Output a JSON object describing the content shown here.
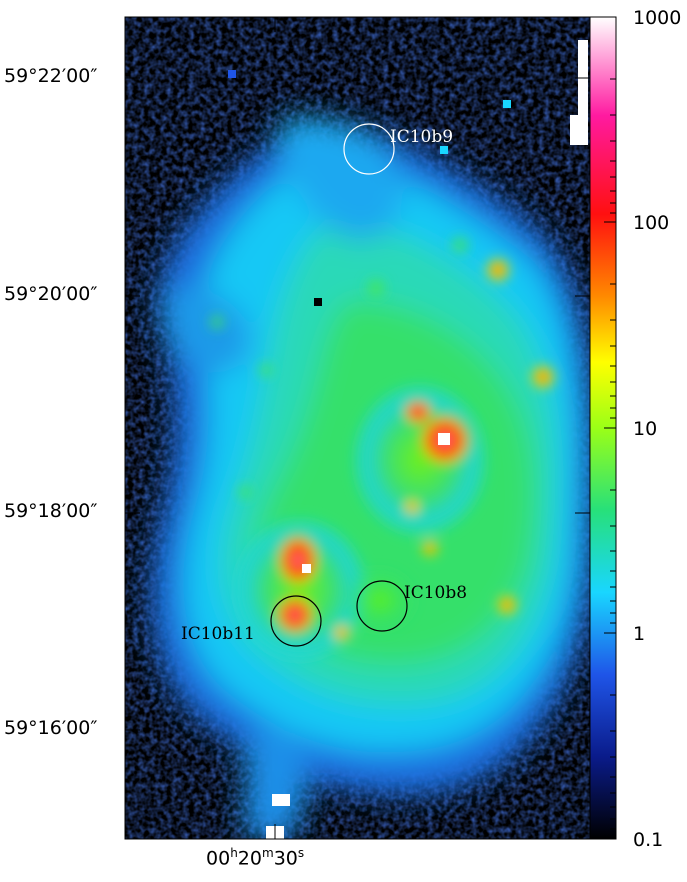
{
  "image": {
    "description_free_labels": true,
    "colormap": [
      "#000000",
      "#0a1b8a",
      "#1f55e8",
      "#19d6ff",
      "#27e07a",
      "#9bff17",
      "#ffff00",
      "#ff8a00",
      "#ff1010",
      "#ff1aa0",
      "#ffffff"
    ]
  },
  "axes": {
    "dec_ticks": [
      "59°22′00″",
      "59°20′00″",
      "59°18′00″",
      "59°16′00″"
    ],
    "ra_label": {
      "main": "00",
      "h": "h",
      "m_val": "20",
      "m": "m",
      "s_val": "30",
      "s": "s"
    }
  },
  "colorbar": {
    "scale": "log",
    "min": 0.1,
    "max": 1000,
    "tick_labels": [
      "1000",
      "100",
      "10",
      "1",
      "0.1"
    ]
  },
  "sources": [
    {
      "name": "IC10b9",
      "circle_color": "#ffffff",
      "label_color": "#ffffff"
    },
    {
      "name": "IC10b8",
      "circle_color": "#000000",
      "label_color": "#000000"
    },
    {
      "name": "IC10b11",
      "circle_color": "#000000",
      "label_color": "#000000"
    }
  ]
}
